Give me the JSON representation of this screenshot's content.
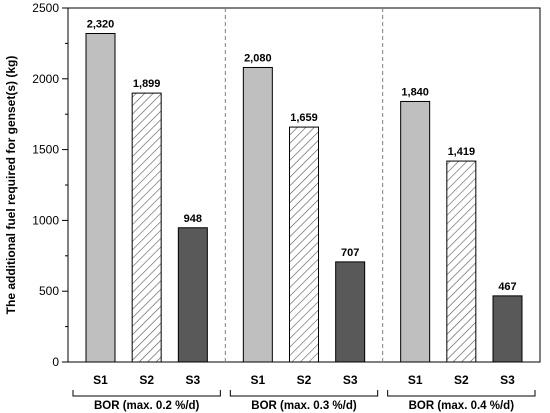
{
  "chart_data": {
    "type": "bar",
    "title": "",
    "xlabel": "",
    "ylabel": "The additional fuel required for genset(s) (kg)",
    "ylim": [
      0,
      2500
    ],
    "yticks": [
      0,
      500,
      1000,
      1500,
      2000,
      2500
    ],
    "groups": [
      {
        "label": "BOR (max. 0.2 %/d)",
        "categories": [
          "S1",
          "S2",
          "S3"
        ],
        "values": [
          2320,
          1899,
          948
        ],
        "value_labels": [
          "2,320",
          "1,899",
          "948"
        ]
      },
      {
        "label": "BOR (max. 0.3 %/d)",
        "categories": [
          "S1",
          "S2",
          "S3"
        ],
        "values": [
          2080,
          1659,
          707
        ],
        "value_labels": [
          "2,080",
          "1,659",
          "707"
        ]
      },
      {
        "label": "BOR (max. 0.4 %/d)",
        "categories": [
          "S1",
          "S2",
          "S3"
        ],
        "values": [
          1840,
          1419,
          467
        ],
        "value_labels": [
          "1,840",
          "1,419",
          "467"
        ]
      }
    ],
    "series_styles": [
      {
        "category": "S1",
        "fill": "#bfbfbf",
        "pattern": "solid"
      },
      {
        "category": "S2",
        "fill": "#ffffff",
        "pattern": "diagonal-hatch"
      },
      {
        "category": "S3",
        "fill": "#595959",
        "pattern": "solid"
      }
    ],
    "group_separators": "dashed-vertical",
    "grid": false,
    "legend": "none"
  }
}
